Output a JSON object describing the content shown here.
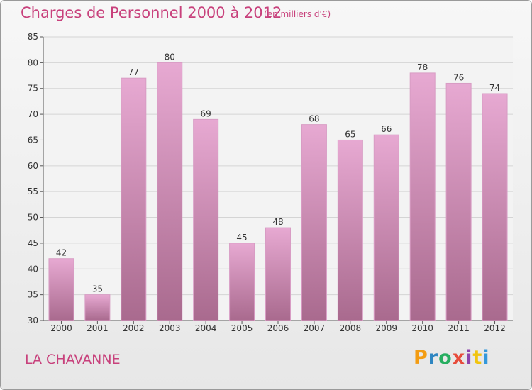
{
  "title": "Charges de Personnel 2000 à 2012",
  "subtitle": "(en milliers d'€)",
  "commune": "LA CHAVANNE",
  "logo": "Proxiti",
  "colors": {
    "title": "#c8417c",
    "bar_top": "#e7a9d2",
    "bar_bottom": "#a96a8e",
    "bar_stroke": "#d89cc4",
    "logo": [
      "#f39c12",
      "#2e86c1",
      "#27ae60",
      "#e74c3c",
      "#8e44ad",
      "#f1c40f",
      "#3498db"
    ]
  },
  "chart_data": {
    "type": "bar",
    "categories": [
      "2000",
      "2001",
      "2002",
      "2003",
      "2004",
      "2005",
      "2006",
      "2007",
      "2008",
      "2009",
      "2010",
      "2011",
      "2012"
    ],
    "values": [
      42,
      35,
      77,
      80,
      69,
      45,
      48,
      68,
      65,
      66,
      78,
      76,
      74
    ],
    "ylim": [
      30,
      85
    ],
    "yticks": [
      30,
      35,
      40,
      45,
      50,
      55,
      60,
      65,
      70,
      75,
      80,
      85
    ],
    "grid": true,
    "data_labels": true
  }
}
